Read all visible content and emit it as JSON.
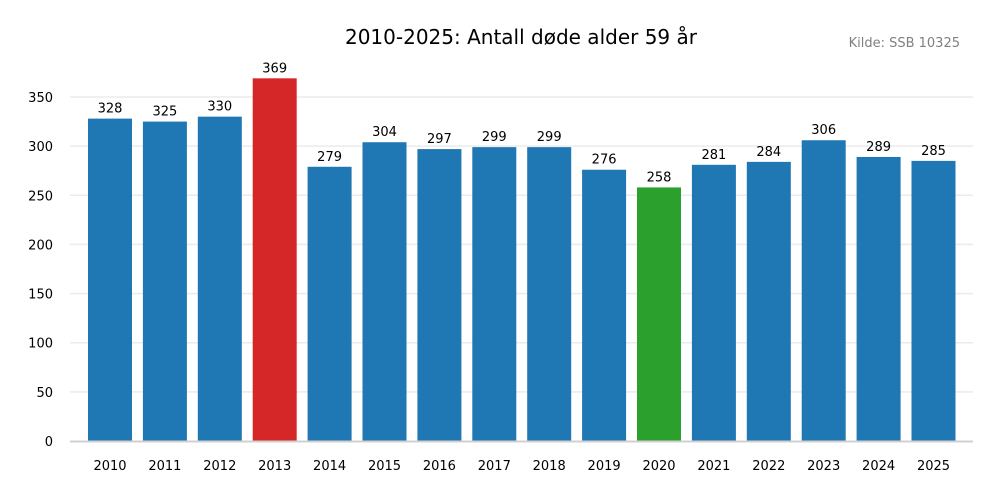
{
  "chart_data": {
    "type": "bar",
    "title": "2010-2025: Antall døde alder 59 år",
    "source": "Kilde: SSB 10325",
    "xlabel": "",
    "ylabel": "",
    "ylim": [
      0,
      350
    ],
    "yticks": [
      0,
      50,
      100,
      150,
      200,
      250,
      300,
      350
    ],
    "grid": true,
    "categories": [
      "2010",
      "2011",
      "2012",
      "2013",
      "2014",
      "2015",
      "2016",
      "2017",
      "2018",
      "2019",
      "2020",
      "2021",
      "2022",
      "2023",
      "2024",
      "2025"
    ],
    "values": [
      328,
      325,
      330,
      369,
      279,
      304,
      297,
      299,
      299,
      276,
      258,
      281,
      284,
      306,
      289,
      285
    ],
    "colors": [
      "#1f77b4",
      "#1f77b4",
      "#1f77b4",
      "#d62728",
      "#1f77b4",
      "#1f77b4",
      "#1f77b4",
      "#1f77b4",
      "#1f77b4",
      "#1f77b4",
      "#2ca02c",
      "#1f77b4",
      "#1f77b4",
      "#1f77b4",
      "#1f77b4",
      "#1f77b4"
    ],
    "highlight_max_color": "#d62728",
    "highlight_min_color": "#2ca02c",
    "default_color": "#1f77b4"
  }
}
